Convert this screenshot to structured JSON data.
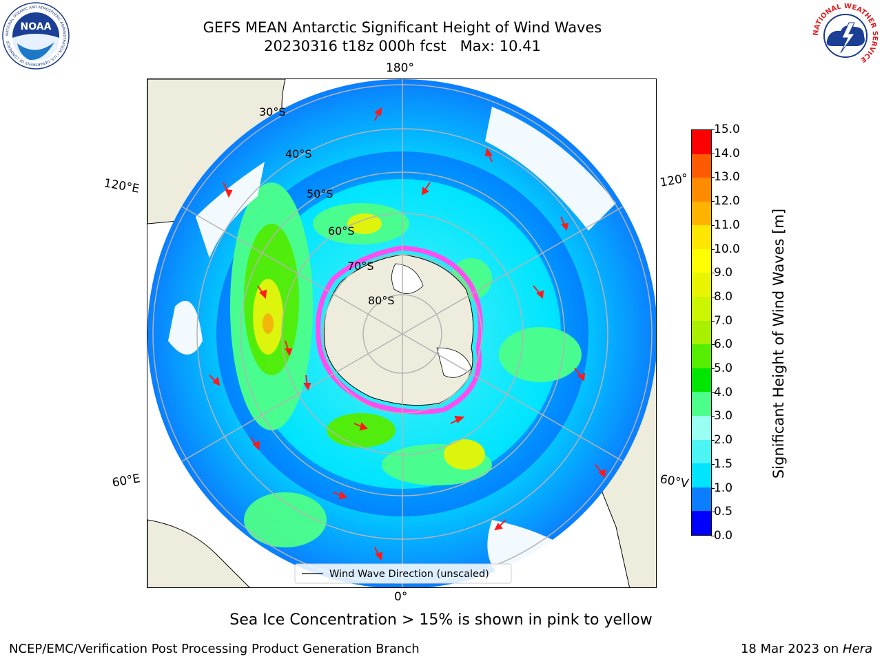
{
  "header": {
    "title_line1": "GEFS MEAN Antarctic Significant Height of Wind Waves",
    "title_line2": "20230316 t18z 000h fcst   Max: 10.41"
  },
  "logos": {
    "noaa_text": "NOAA",
    "noaa_ring": "NATIONAL OCEANIC AND ATMOSPHERIC ADMINISTRATION • U.S. DEPARTMENT OF COMMERCE",
    "nws_ring": "NATIONAL WEATHER SERVICE"
  },
  "map": {
    "longitude_labels": {
      "top": "180°",
      "bottom": "0°",
      "upper_left": "120°E",
      "upper_right": "120°",
      "lower_left": "60°E",
      "lower_right": "60°V"
    },
    "latitude_labels": [
      "30°S",
      "40°S",
      "50°S",
      "60°S",
      "70°S",
      "80°S"
    ],
    "legend_label": "Wind Wave Direction (unscaled)",
    "colors": {
      "land": "#eeecdc",
      "arrow": "#ff1a1a",
      "graticule": "#b4b4b4",
      "sea_ice": "#ff4df2"
    }
  },
  "colorbar": {
    "title": "Significant Height of Wind Waves [m]",
    "levels": [
      "0.0",
      "0.5",
      "1.0",
      "1.5",
      "2.0",
      "3.0",
      "4.0",
      "5.0",
      "6.0",
      "7.0",
      "8.0",
      "9.0",
      "10.0",
      "11.0",
      "12.0",
      "13.0",
      "14.0",
      "15.0"
    ],
    "colors": [
      "#0000ff",
      "#0a7eff",
      "#00e4ff",
      "#4cf4f4",
      "#99fff2",
      "#4dff8a",
      "#00e600",
      "#55ee00",
      "#a8f000",
      "#ccf500",
      "#e9f500",
      "#ffff00",
      "#ffe600",
      "#ffb300",
      "#ff8c00",
      "#ff5a00",
      "#ff0000"
    ]
  },
  "footer": {
    "subtitle": "Sea Ice Concentration > 15% is shown in pink to yellow",
    "credit": "NCEP/EMC/Verification Post Processing Product Generation Branch",
    "date": "18 Mar 2023 on ",
    "machine": "Hera"
  }
}
